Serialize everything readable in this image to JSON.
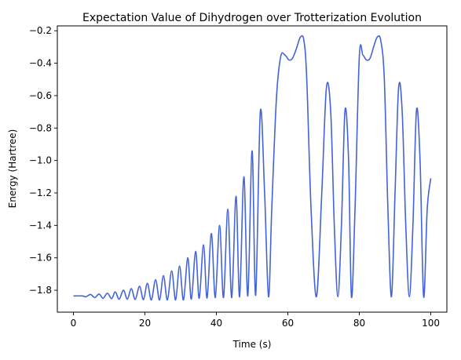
{
  "chart_data": {
    "type": "line",
    "title": "Expectation Value of Dihydrogen over Trotterization Evolution",
    "xlabel": "Time (s)",
    "ylabel": "Energy (Hartree)",
    "xlim": [
      -4.5,
      104.5
    ],
    "ylim": [
      -1.935,
      -0.17
    ],
    "xticks": [
      0,
      20,
      40,
      60,
      80,
      100
    ],
    "xtick_labels": [
      "0",
      "20",
      "40",
      "60",
      "80",
      "100"
    ],
    "yticks": [
      -1.8,
      -1.6,
      -1.4,
      -1.2,
      -1.0,
      -0.8,
      -0.6,
      -0.4,
      -0.2
    ],
    "ytick_labels": [
      "−1.8",
      "−1.6",
      "−1.4",
      "−1.2",
      "−1.0",
      "−0.8",
      "−0.6",
      "−0.4",
      "−0.2"
    ],
    "grid": false,
    "series": [
      {
        "color": "#4363d8",
        "x": [
          0,
          2.5,
          3.5,
          4.8,
          6.0,
          7.2,
          8.3,
          9.5,
          10.7,
          11.7,
          12.8,
          14.0,
          15.1,
          16.2,
          17.3,
          18.5,
          19.6,
          20.7,
          21.8,
          23.0,
          24.1,
          25.2,
          26.3,
          27.5,
          28.6,
          29.7,
          30.8,
          32.0,
          33.0,
          34.2,
          35.2,
          36.4,
          37.4,
          38.6,
          39.7,
          40.9,
          42.0,
          43.2,
          44.3,
          45.5,
          46.5,
          47.7,
          48.8,
          50.0,
          51.0,
          52.3,
          53.5,
          54.6,
          55.5,
          56.8,
          58.0,
          59.2,
          60.3,
          61.3,
          62.4,
          63.5,
          64.5,
          65.3,
          66.5,
          68.0,
          69.5,
          70.8,
          72.0,
          73.0,
          74.0,
          75.0,
          76.0,
          77.0,
          77.8,
          78.8,
          80.0,
          81.0,
          82.0,
          83.0,
          84.0,
          85.0,
          86.0,
          87.0,
          88.0,
          89.0,
          90.0,
          91.0,
          92.0,
          93.0,
          94.0,
          95.0,
          96.0,
          97.0,
          98.0,
          99.0,
          100.0
        ],
        "y": [
          -1.835,
          -1.835,
          -1.84,
          -1.826,
          -1.845,
          -1.823,
          -1.85,
          -1.818,
          -1.852,
          -1.81,
          -1.855,
          -1.8,
          -1.855,
          -1.79,
          -1.857,
          -1.775,
          -1.858,
          -1.757,
          -1.86,
          -1.735,
          -1.86,
          -1.71,
          -1.86,
          -1.68,
          -1.86,
          -1.65,
          -1.86,
          -1.6,
          -1.855,
          -1.56,
          -1.85,
          -1.52,
          -1.848,
          -1.45,
          -1.845,
          -1.4,
          -1.845,
          -1.3,
          -1.845,
          -1.22,
          -1.84,
          -1.1,
          -1.835,
          -0.94,
          -1.83,
          -0.7,
          -1.2,
          -1.84,
          -1.3,
          -0.62,
          -0.36,
          -0.35,
          -0.38,
          -0.37,
          -0.31,
          -0.24,
          -0.26,
          -0.5,
          -1.3,
          -1.84,
          -1.2,
          -0.55,
          -0.7,
          -1.4,
          -1.84,
          -1.4,
          -0.69,
          -1.0,
          -1.84,
          -1.3,
          -0.36,
          -0.35,
          -0.38,
          -0.37,
          -0.3,
          -0.24,
          -0.26,
          -0.5,
          -1.3,
          -1.84,
          -1.2,
          -0.55,
          -0.7,
          -1.4,
          -1.84,
          -1.4,
          -0.69,
          -1.0,
          -1.84,
          -1.3,
          -1.11
        ]
      }
    ]
  }
}
